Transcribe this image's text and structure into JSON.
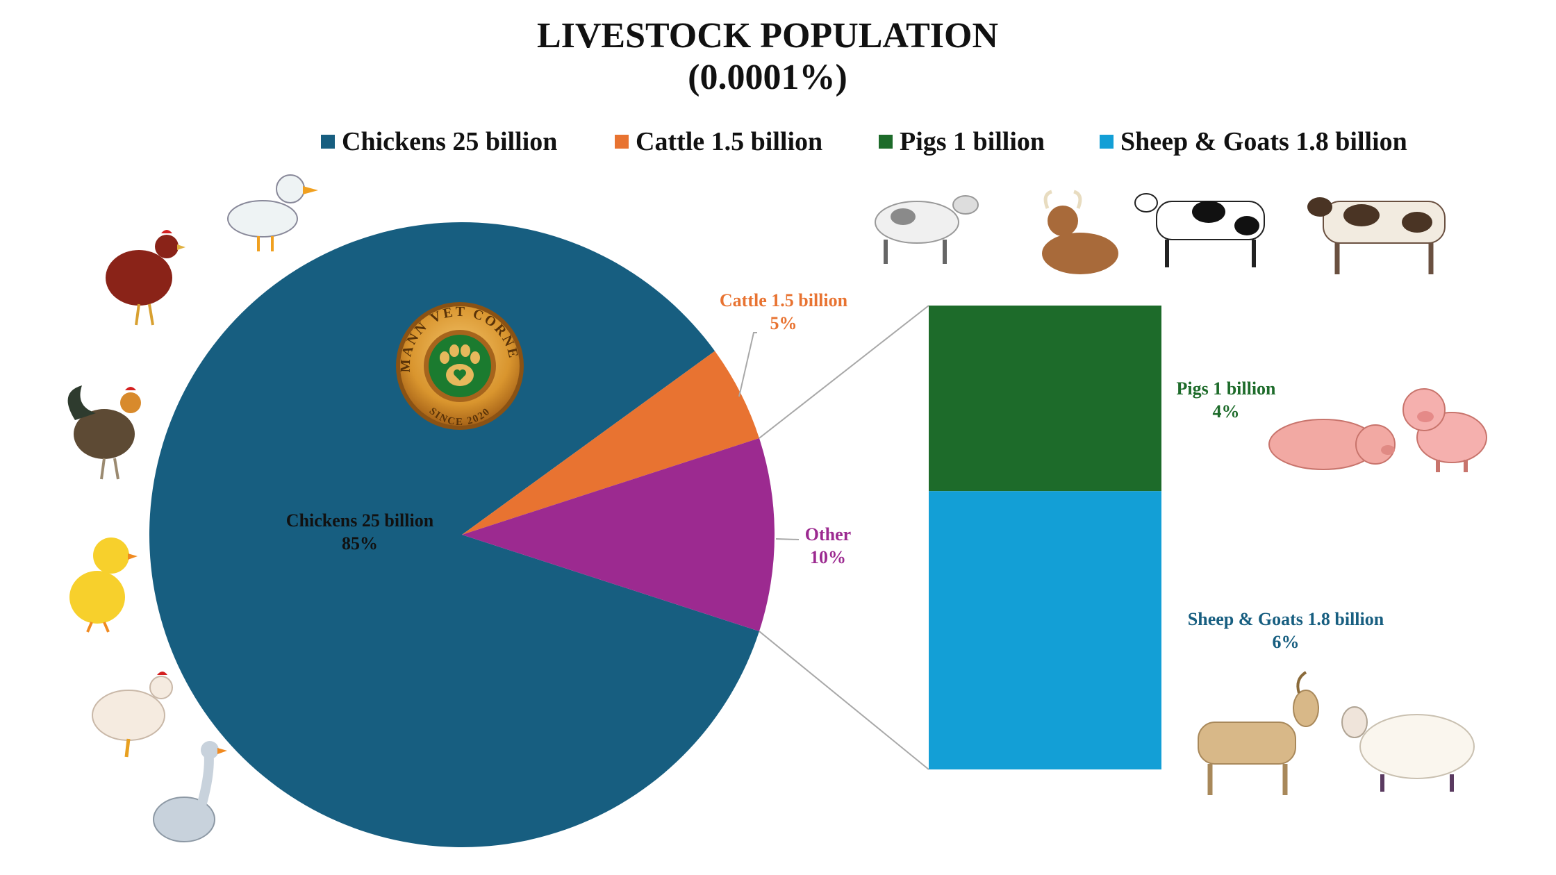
{
  "chart_data": {
    "type": "pie",
    "title": "LIVESTOCK POPULATION",
    "subtitle": "(0.0001%)",
    "legend": {
      "placement": "top",
      "entries": [
        {
          "label": "Chickens 25 billion",
          "color": "#175e80"
        },
        {
          "label": "Cattle 1.5 billion",
          "color": "#e87331"
        },
        {
          "label": "Pigs 1 billion",
          "color": "#1d6b2a"
        },
        {
          "label": "Sheep & Goats 1.8 billion",
          "color": "#139fd6"
        }
      ]
    },
    "pie": {
      "slices": [
        {
          "key": "chickens",
          "category": "Chickens 25 billion",
          "value": 85,
          "value_label": "85%",
          "color": "#175e80",
          "label_color": "#111111"
        },
        {
          "key": "cattle",
          "category": "Cattle 1.5 billion",
          "value": 5,
          "value_label": "5%",
          "color": "#e87331",
          "label_color": "#e87331"
        },
        {
          "key": "other",
          "category": "Other",
          "value": 10,
          "value_label": "10%",
          "color": "#9c2a90",
          "label_color": "#9c2a90"
        }
      ]
    },
    "breakout_bar": {
      "of": "Other",
      "segments": [
        {
          "key": "pigs",
          "category": "Pigs 1 billion",
          "value": 4,
          "value_label": "4%",
          "color": "#1d6b2a",
          "label_color": "#1d6b2a"
        },
        {
          "key": "sheep",
          "category": "Sheep & Goats 1.8 billion",
          "value": 6,
          "value_label": "6%",
          "color": "#139fd6",
          "label_color": "#175e80"
        }
      ]
    }
  },
  "badge": {
    "text": "MANN VET CORNER",
    "since": "SINCE 2020",
    "icon": "paw-icon"
  },
  "decor": {
    "illustrations": [
      "duck-icon",
      "red-hen-icon",
      "rooster-icon",
      "chick-icon",
      "white-hen-icon",
      "goose-icon",
      "dairy-cow-icon",
      "ox-icon",
      "holstein-cow-icon",
      "spotted-cow-icon",
      "pig-icon",
      "piglet-icon",
      "goat-icon",
      "sheep-icon"
    ]
  }
}
